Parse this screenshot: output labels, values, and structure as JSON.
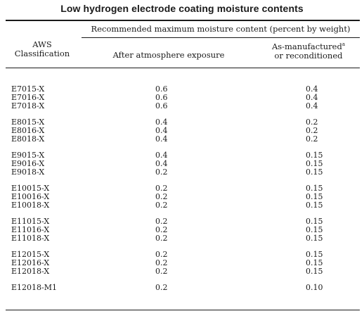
{
  "title": "Low hydrogen electrode coating moisture contents",
  "header": {
    "aws_line1": "AWS",
    "aws_line2": "Classification",
    "span_label": "Recommended maximum moisture content (percent by weight)",
    "col_after": "After atmosphere exposure",
    "col_asman_line1": "As-manufactured",
    "col_asman_footnote": "a",
    "col_asman_line2": "or reconditioned"
  },
  "groups": [
    {
      "rows": [
        {
          "cls": "E7015-X",
          "after": "0.6",
          "asman": "0.4"
        },
        {
          "cls": "E7016-X",
          "after": "0.6",
          "asman": "0.4"
        },
        {
          "cls": "E7018-X",
          "after": "0.6",
          "asman": "0.4"
        }
      ]
    },
    {
      "rows": [
        {
          "cls": "E8015-X",
          "after": "0.4",
          "asman": "0.2"
        },
        {
          "cls": "E8016-X",
          "after": "0.4",
          "asman": "0.2"
        },
        {
          "cls": "E8018-X",
          "after": "0.4",
          "asman": "0.2"
        }
      ]
    },
    {
      "rows": [
        {
          "cls": "E9015-X",
          "after": "0.4",
          "asman": "0.15"
        },
        {
          "cls": "E9016-X",
          "after": "0.4",
          "asman": "0.15"
        },
        {
          "cls": "E9018-X",
          "after": "0.2",
          "asman": "0.15"
        }
      ]
    },
    {
      "rows": [
        {
          "cls": "E10015-X",
          "after": "0.2",
          "asman": "0.15"
        },
        {
          "cls": "E10016-X",
          "after": "0.2",
          "asman": "0.15"
        },
        {
          "cls": "E10018-X",
          "after": "0.2",
          "asman": "0.15"
        }
      ]
    },
    {
      "rows": [
        {
          "cls": "E11015-X",
          "after": "0.2",
          "asman": "0.15"
        },
        {
          "cls": "E11016-X",
          "after": "0.2",
          "asman": "0.15"
        },
        {
          "cls": "E11018-X",
          "after": "0.2",
          "asman": "0.15"
        }
      ]
    },
    {
      "rows": [
        {
          "cls": "E12015-X",
          "after": "0.2",
          "asman": "0.15"
        },
        {
          "cls": "E12016-X",
          "after": "0.2",
          "asman": "0.15"
        },
        {
          "cls": "E12018-X",
          "after": "0.2",
          "asman": "0.15"
        }
      ]
    },
    {
      "rows": [
        {
          "cls": "E12018-M1",
          "after": "0.2",
          "asman": "0.10"
        }
      ]
    }
  ]
}
